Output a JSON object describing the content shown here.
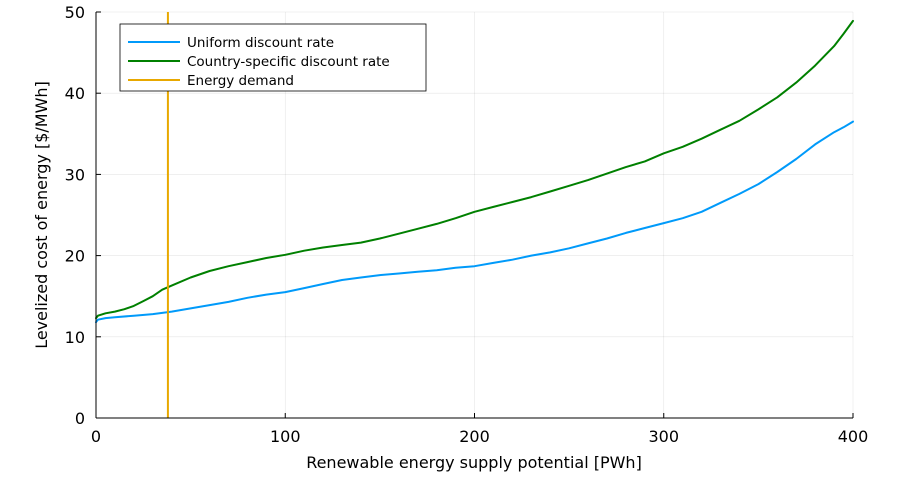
{
  "chart_data": {
    "type": "line",
    "xlabel": "Renewable energy supply potential [PWh]",
    "ylabel": "Levelized cost of energy [$/MWh]",
    "xlim": [
      0,
      400
    ],
    "ylim": [
      0,
      50
    ],
    "xticks": [
      0,
      100,
      200,
      300,
      400
    ],
    "yticks": [
      0,
      10,
      20,
      30,
      40,
      50
    ],
    "grid": true,
    "legend_position": "top-left",
    "series": [
      {
        "name": "Uniform discount rate",
        "color": "#009AFA",
        "x": [
          0,
          1,
          5,
          10,
          20,
          30,
          40,
          50,
          60,
          70,
          80,
          90,
          100,
          110,
          120,
          130,
          140,
          150,
          160,
          170,
          180,
          190,
          200,
          210,
          220,
          230,
          240,
          250,
          260,
          270,
          280,
          290,
          300,
          310,
          320,
          330,
          340,
          350,
          360,
          370,
          380,
          390,
          395,
          400
        ],
        "y": [
          11.8,
          12.1,
          12.3,
          12.4,
          12.6,
          12.8,
          13.1,
          13.5,
          13.9,
          14.3,
          14.8,
          15.2,
          15.5,
          16.0,
          16.5,
          17.0,
          17.3,
          17.6,
          17.8,
          18.0,
          18.2,
          18.5,
          18.7,
          19.1,
          19.5,
          20.0,
          20.4,
          20.9,
          21.5,
          22.1,
          22.8,
          23.4,
          24.0,
          24.6,
          25.4,
          26.5,
          27.6,
          28.8,
          30.3,
          31.9,
          33.7,
          35.2,
          35.8,
          36.5
        ]
      },
      {
        "name": "Country-specific discount rate",
        "color": "#008000",
        "x": [
          0,
          1,
          5,
          10,
          15,
          20,
          25,
          30,
          35,
          40,
          50,
          60,
          70,
          80,
          90,
          100,
          110,
          120,
          130,
          140,
          150,
          160,
          170,
          180,
          190,
          200,
          210,
          220,
          230,
          240,
          250,
          260,
          270,
          280,
          290,
          300,
          310,
          320,
          330,
          340,
          350,
          360,
          370,
          380,
          390,
          395,
          400
        ],
        "y": [
          12.3,
          12.6,
          12.9,
          13.1,
          13.4,
          13.8,
          14.4,
          15.0,
          15.8,
          16.3,
          17.3,
          18.1,
          18.7,
          19.2,
          19.7,
          20.1,
          20.6,
          21.0,
          21.3,
          21.6,
          22.1,
          22.7,
          23.3,
          23.9,
          24.6,
          25.4,
          26.0,
          26.6,
          27.2,
          27.9,
          28.6,
          29.3,
          30.1,
          30.9,
          31.6,
          32.6,
          33.4,
          34.4,
          35.5,
          36.6,
          38.0,
          39.5,
          41.3,
          43.4,
          45.8,
          47.3,
          48.9
        ]
      }
    ],
    "vlines": [
      {
        "name": "Energy demand",
        "x": 38,
        "color": "#E8A800"
      }
    ],
    "legend": [
      {
        "label": "Uniform discount rate",
        "color": "#009AFA"
      },
      {
        "label": "Country-specific discount rate",
        "color": "#008000"
      },
      {
        "label": "Energy demand",
        "color": "#E8A800"
      }
    ]
  }
}
